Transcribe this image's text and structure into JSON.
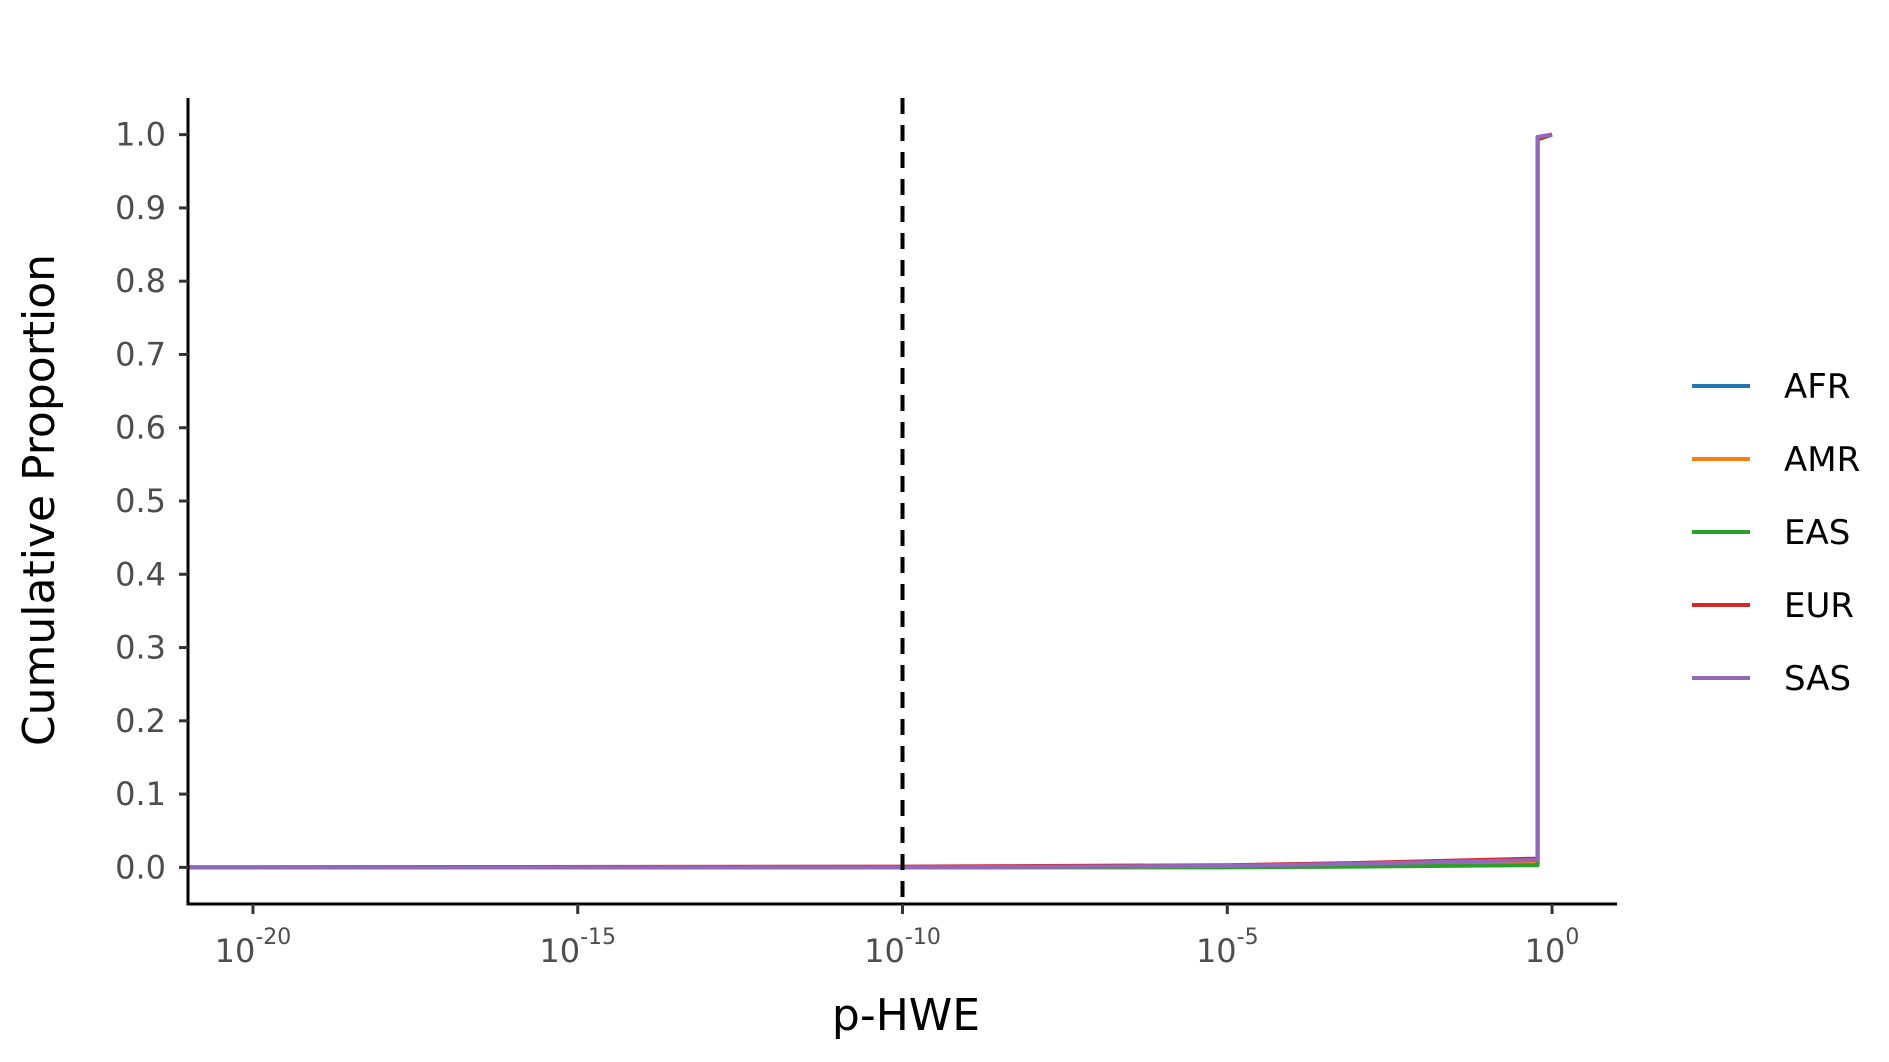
{
  "chart_data": {
    "type": "line",
    "xlabel": "p-HWE",
    "ylabel": "Cumulative Proportion",
    "x_scale": "log10",
    "xlim": [
      1e-21,
      10.0
    ],
    "ylim": [
      -0.05,
      1.05
    ],
    "x_ticks": [
      {
        "value": 1e-20,
        "base": "10",
        "exp": "-20"
      },
      {
        "value": 1e-15,
        "base": "10",
        "exp": "-15"
      },
      {
        "value": 1e-10,
        "base": "10",
        "exp": "-10"
      },
      {
        "value": 1e-05,
        "base": "10",
        "exp": "-5"
      },
      {
        "value": 1,
        "base": "10",
        "exp": "0"
      }
    ],
    "y_ticks": [
      "0.0",
      "0.1",
      "0.2",
      "0.3",
      "0.4",
      "0.5",
      "0.6",
      "0.7",
      "0.8",
      "0.9",
      "1.0"
    ],
    "reference_line": {
      "x": 1e-10,
      "style": "dashed",
      "color": "#000000"
    },
    "grid": false,
    "legend_position": "right",
    "series": [
      {
        "name": "AFR",
        "color": "#1f77b4",
        "x": [
          1e-21,
          1e-10,
          1e-05,
          0.001,
          0.6,
          0.6,
          1
        ],
        "y": [
          0,
          0,
          0.001,
          0.002,
          0.004,
          0.996,
          1.0
        ]
      },
      {
        "name": "AMR",
        "color": "#ff7f0e",
        "x": [
          1e-21,
          1e-10,
          1e-05,
          0.001,
          0.6,
          0.6,
          1
        ],
        "y": [
          0,
          0,
          0.001,
          0.003,
          0.006,
          0.994,
          1.0
        ]
      },
      {
        "name": "EAS",
        "color": "#2ca02c",
        "x": [
          1e-21,
          1e-10,
          1e-05,
          0.001,
          0.6,
          0.6,
          1
        ],
        "y": [
          0,
          0,
          0.0,
          0.001,
          0.003,
          0.993,
          1.0
        ]
      },
      {
        "name": "EUR",
        "color": "#d62728",
        "x": [
          1e-21,
          1e-10,
          1e-05,
          0.001,
          0.6,
          0.6,
          1
        ],
        "y": [
          0,
          0.001,
          0.003,
          0.006,
          0.012,
          0.995,
          1.0
        ]
      },
      {
        "name": "SAS",
        "color": "#9467bd",
        "x": [
          1e-21,
          1e-10,
          1e-05,
          0.001,
          0.6,
          0.6,
          1
        ],
        "y": [
          0,
          0,
          0.002,
          0.005,
          0.01,
          0.997,
          1.0
        ]
      }
    ]
  }
}
